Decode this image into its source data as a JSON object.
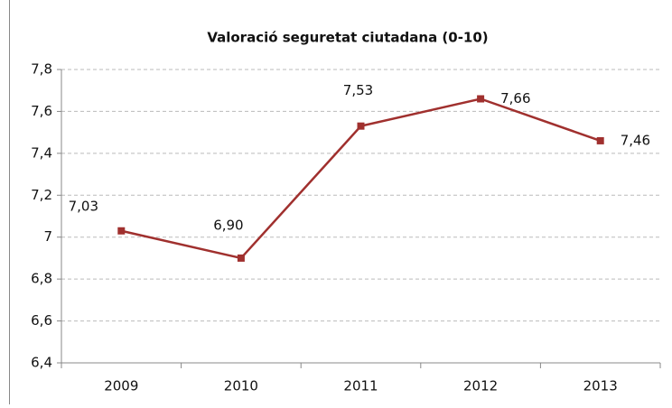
{
  "chart_data": {
    "type": "line",
    "title": "Valoració seguretat ciutadana (0-10)",
    "categories": [
      "2009",
      "2010",
      "2011",
      "2012",
      "2013"
    ],
    "series": [
      {
        "color": "#a0302e",
        "values": [
          7.03,
          6.9,
          7.53,
          7.66,
          7.46
        ],
        "value_labels": [
          "7,03",
          "6,90",
          "7,53",
          "7,66",
          "7,46"
        ]
      }
    ],
    "ylim": [
      6.4,
      7.8
    ],
    "yticks": [
      {
        "value": 6.4,
        "label": "6,4"
      },
      {
        "value": 6.6,
        "label": "6,6"
      },
      {
        "value": 6.8,
        "label": "6,8"
      },
      7,
      {
        "value": 7.2,
        "label": "7,2"
      },
      {
        "value": 7.4,
        "label": "7,4"
      },
      {
        "value": 7.6,
        "label": "7,6"
      },
      {
        "value": 7.8,
        "label": "7,8"
      }
    ],
    "grid": true
  }
}
